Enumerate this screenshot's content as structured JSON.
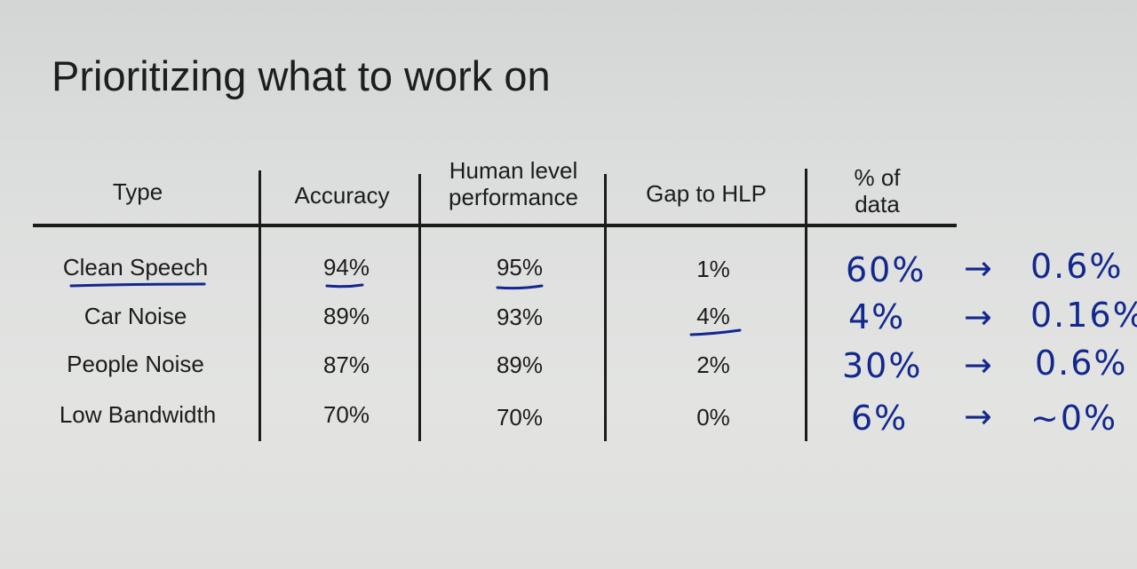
{
  "slide": {
    "title": "Prioritizing what to work on"
  },
  "table": {
    "headers": {
      "type": "Type",
      "accuracy": "Accuracy",
      "hlp_line1": "Human level",
      "hlp_line2": "performance",
      "gap": "Gap to HLP",
      "data_line1": "% of",
      "data_line2": "data"
    },
    "rows": [
      {
        "type": "Clean Speech",
        "accuracy": "94%",
        "hlp": "95%",
        "gap": "1%"
      },
      {
        "type": "Car Noise",
        "accuracy": "89%",
        "hlp": "93%",
        "gap": "4%"
      },
      {
        "type": "People Noise",
        "accuracy": "87%",
        "hlp": "89%",
        "gap": "2%"
      },
      {
        "type": "Low Bandwidth",
        "accuracy": "70%",
        "hlp": "70%",
        "gap": "0%"
      }
    ]
  },
  "handwriting": {
    "ink_color": "#13288f",
    "rows": [
      {
        "pct": "60%",
        "arrow": "→",
        "result": "0.6%"
      },
      {
        "pct": "4%",
        "arrow": "→",
        "result": "0.16%"
      },
      {
        "pct": "30%",
        "arrow": "→",
        "result": "0.6%"
      },
      {
        "pct": "6%",
        "arrow": "→",
        "result": "~0%"
      }
    ]
  }
}
